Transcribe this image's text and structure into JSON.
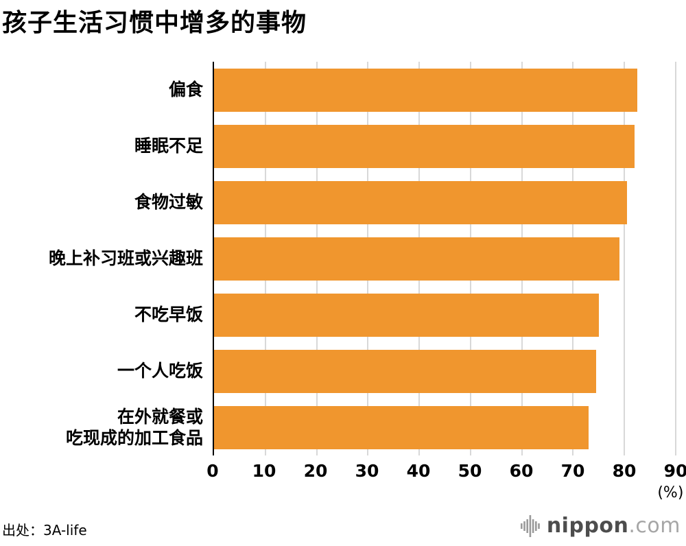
{
  "chart_data": {
    "type": "bar",
    "orientation": "horizontal",
    "title": "孩子生活习惯中增多的事物",
    "categories": [
      "偏食",
      "睡眠不足",
      "食物过敏",
      "晚上补习班或兴趣班",
      "不吃早饭",
      "一个人吃饭",
      "在外就餐或\n吃现成的加工食品"
    ],
    "values": [
      82.5,
      82,
      80.5,
      79,
      75,
      74.5,
      73
    ],
    "xlim": [
      0,
      90
    ],
    "xticks": [
      0,
      10,
      20,
      30,
      40,
      50,
      60,
      70,
      80,
      90
    ],
    "unit_label": "(%)",
    "bar_color": "#F0962E",
    "gridline_color": "#D8D8D8",
    "axis_color": "#000000",
    "grid": true,
    "legend": "none"
  },
  "footer": {
    "source": "出处：3A-life",
    "logo": {
      "name": "nippon",
      "tld": ".com"
    }
  }
}
